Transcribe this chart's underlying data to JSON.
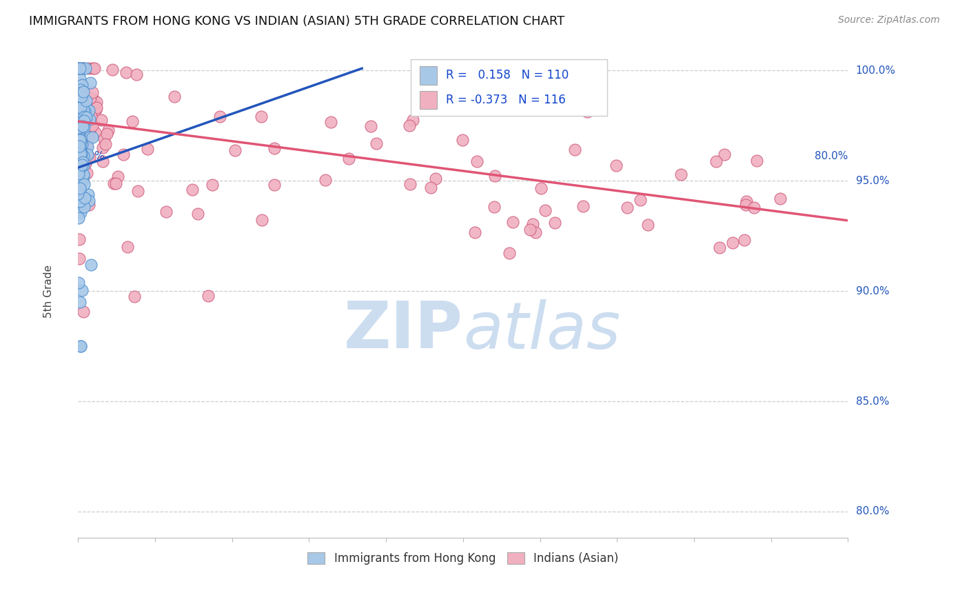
{
  "title": "IMMIGRANTS FROM HONG KONG VS INDIAN (ASIAN) 5TH GRADE CORRELATION CHART",
  "source": "Source: ZipAtlas.com",
  "ylabel": "5th Grade",
  "ytick_labels": [
    "80.0%",
    "85.0%",
    "90.0%",
    "95.0%",
    "100.0%"
  ],
  "ytick_values": [
    0.8,
    0.85,
    0.9,
    0.95,
    1.0
  ],
  "xmin": 0.0,
  "xmax": 0.8,
  "ymin": 0.788,
  "ymax": 1.012,
  "r_hk": 0.158,
  "n_hk": 110,
  "r_indian": -0.373,
  "n_indian": 116,
  "color_hk_fill": "#a8c8e8",
  "color_hk_edge": "#5090d0",
  "color_indian_fill": "#f0b0c0",
  "color_indian_edge": "#d06080",
  "color_hk_line": "#2255bb",
  "color_indian_line": "#e05575",
  "watermark_color": "#ccddf0",
  "title_color": "#111111",
  "source_color": "#888888",
  "legend_r_color": "#1144cc",
  "hk_line_x0": 0.0,
  "hk_line_x1": 0.295,
  "hk_line_y0": 0.956,
  "hk_line_y1": 1.001,
  "indian_line_x0": 0.0,
  "indian_line_x1": 0.8,
  "indian_line_y0": 0.977,
  "indian_line_y1": 0.932
}
